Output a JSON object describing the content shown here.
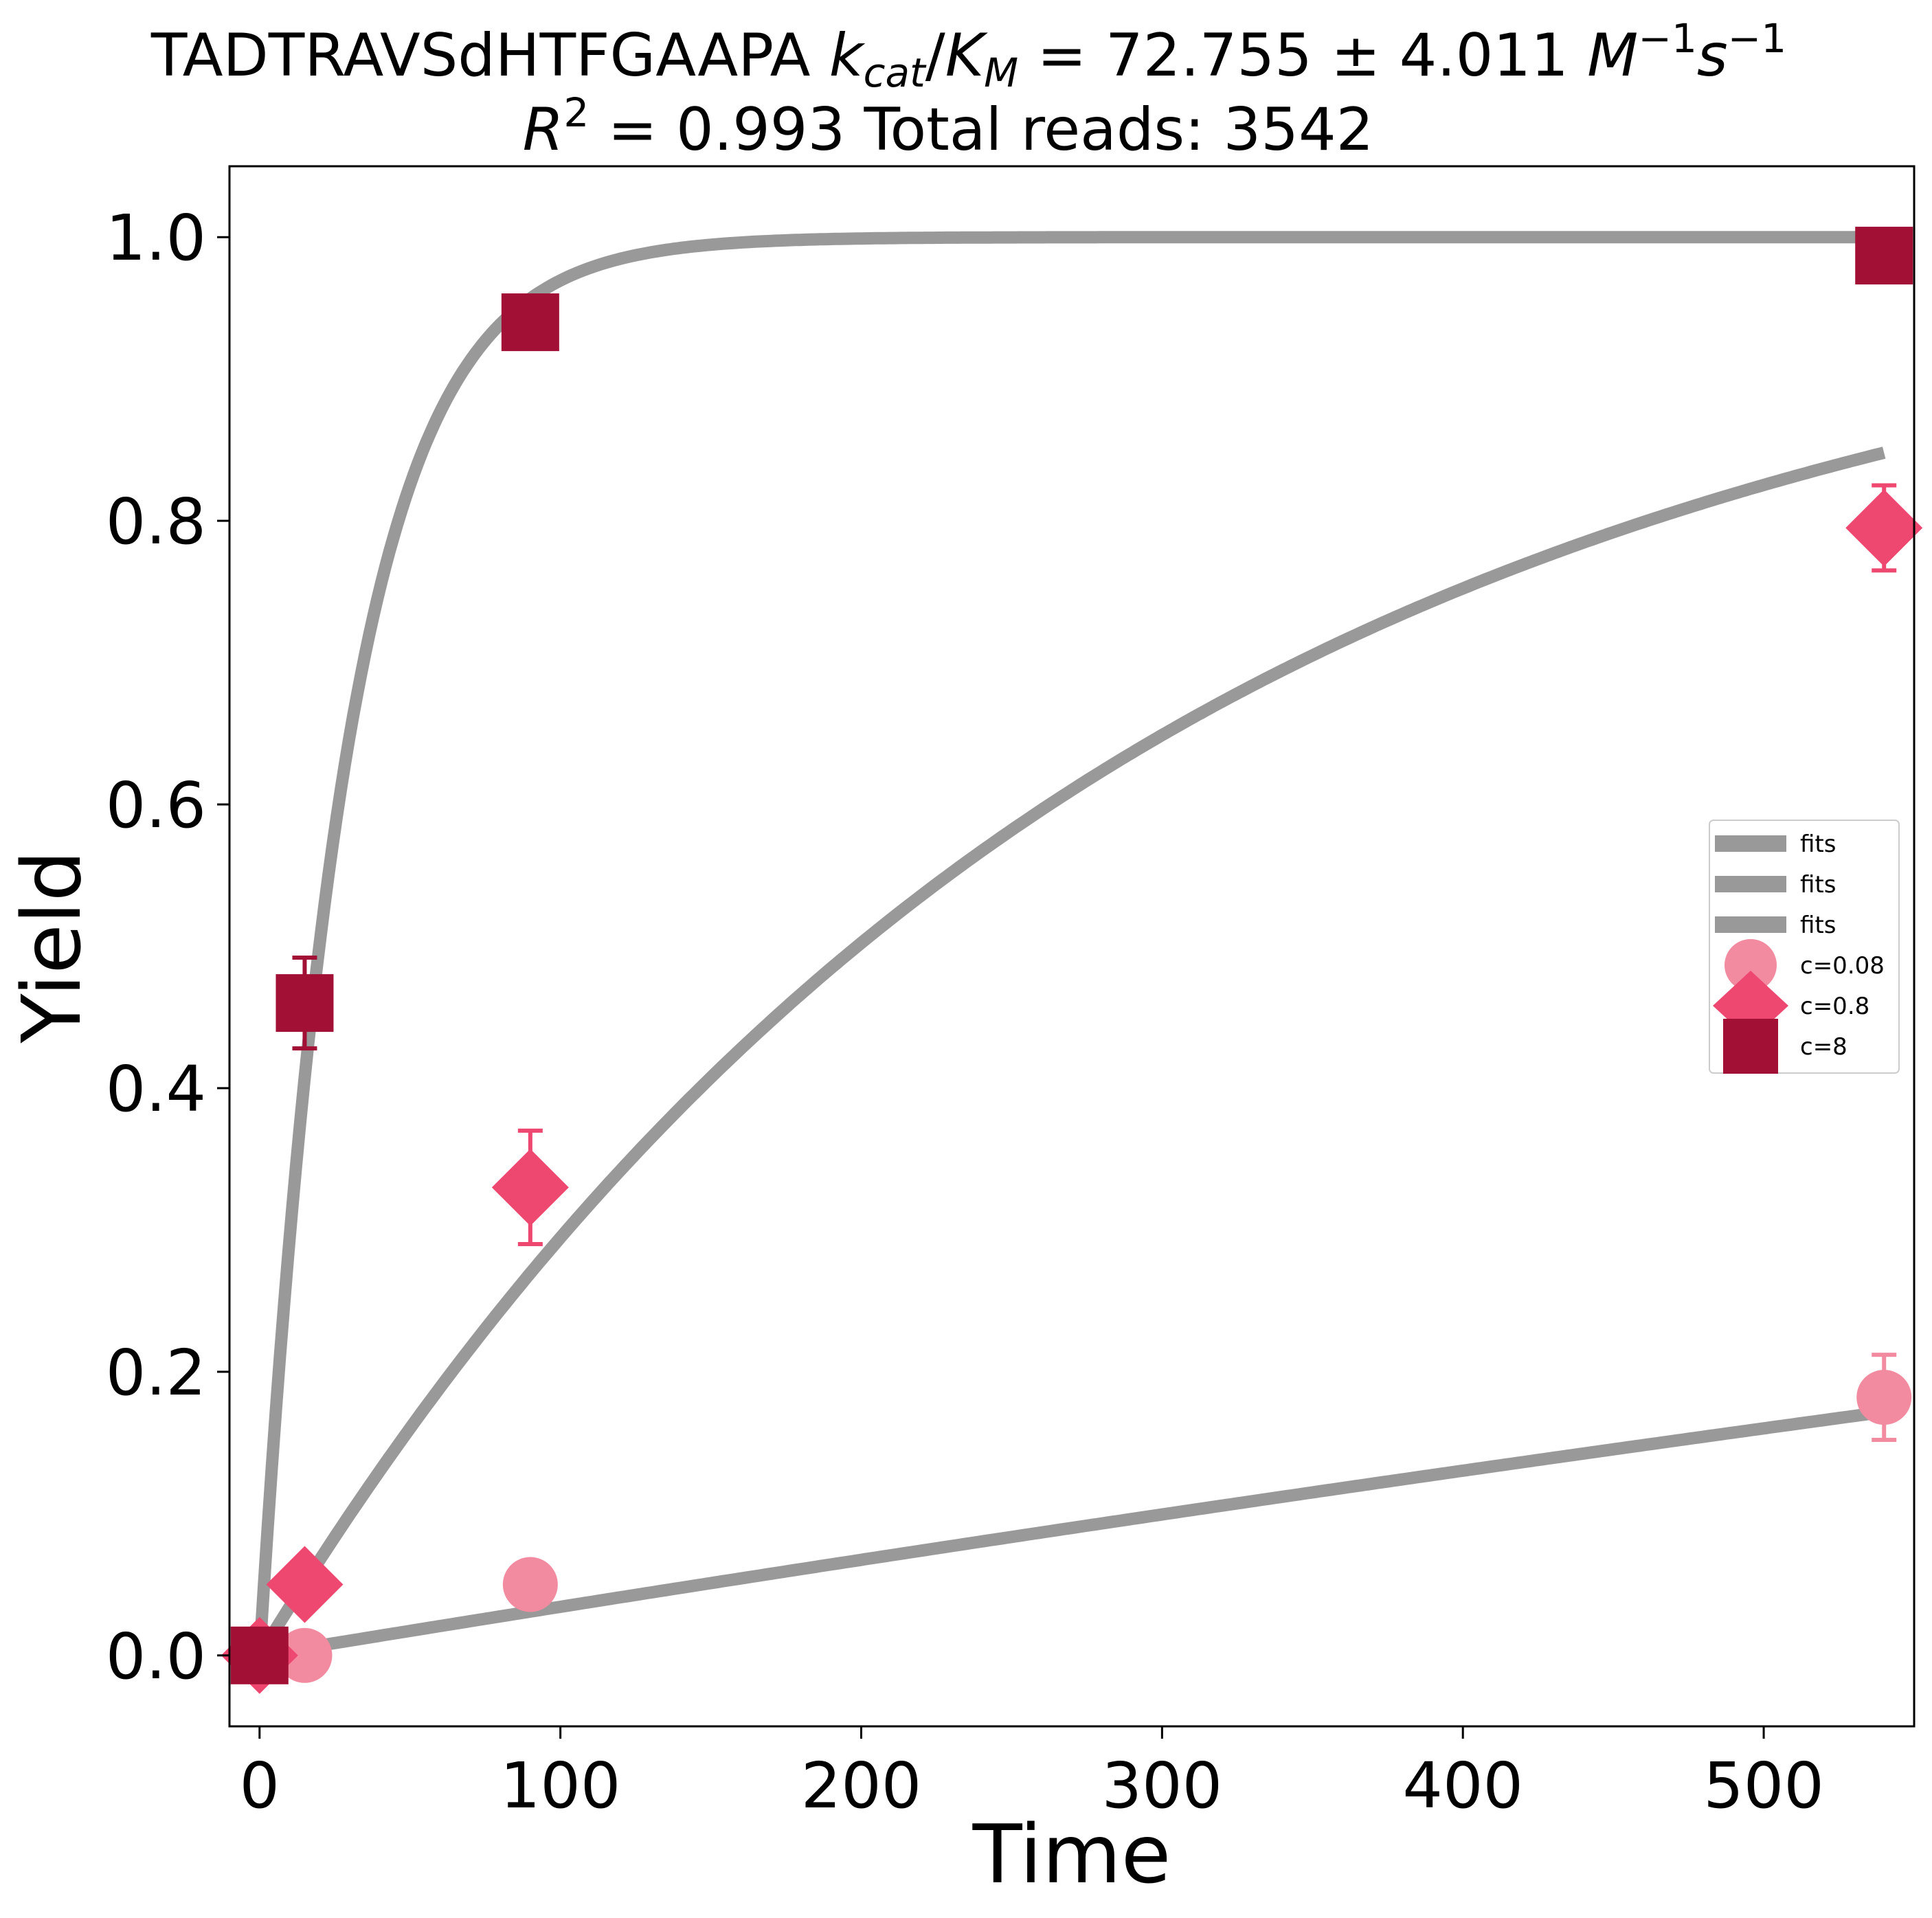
{
  "title": {
    "peptide": "TADTRAVSdHTFGAAPA",
    "k": "k",
    "cat": "cat",
    "slash": "/",
    "K": "K",
    "M_sub": "M",
    "equals_value": " = 72.755 ± 4.011 ",
    "unit_M": "M",
    "exp_minus1": "−1",
    "unit_s": "s",
    "exp_minus1_b": "−1",
    "r_R": "R",
    "r_sq": "2",
    "r_rest": " = 0.993 Total reads: 3542"
  },
  "chart_data": {
    "type": "scatter",
    "xlabel": "Time",
    "ylabel": "Yield",
    "xlim": [
      -10,
      550
    ],
    "ylim": [
      -0.05,
      1.05
    ],
    "xticks": [
      0,
      100,
      200,
      300,
      400,
      500
    ],
    "xtick_labels": [
      "0",
      "100",
      "200",
      "300",
      "400",
      "500"
    ],
    "yticks": [
      0.0,
      0.2,
      0.4,
      0.6,
      0.8,
      1.0
    ],
    "ytick_labels": [
      "0.0",
      "0.2",
      "0.4",
      "0.6",
      "0.8",
      "1.0"
    ],
    "grid": false,
    "legend_position": "center-right",
    "kcat_km": 72.755,
    "kcat_km_err": 4.011,
    "fit_color": "#999999",
    "fits": [
      {
        "label": "fits",
        "concentration": 0.08,
        "k_eff": 0.0003489
      },
      {
        "label": "fits",
        "concentration": 0.8,
        "k_eff": 0.003489
      },
      {
        "label": "fits",
        "concentration": 8,
        "k_eff": 0.03489
      }
    ],
    "fit_x_range": [
      0,
      540
    ],
    "series": [
      {
        "name": "c=0.08",
        "marker": "circle",
        "color": "#f28ba0",
        "x": [
          0,
          15,
          90,
          540
        ],
        "y": [
          0.0,
          0.0,
          0.05,
          0.182
        ],
        "err": [
          0,
          0,
          0,
          0.03
        ]
      },
      {
        "name": "c=0.8",
        "marker": "diamond",
        "color": "#ee4870",
        "x": [
          0,
          15,
          90,
          540
        ],
        "y": [
          0.0,
          0.05,
          0.33,
          0.795
        ],
        "err": [
          0,
          0,
          0.04,
          0.03
        ]
      },
      {
        "name": "c=8",
        "marker": "square",
        "color": "#a31035",
        "x": [
          0,
          15,
          90,
          540
        ],
        "y": [
          0.0,
          0.46,
          0.94,
          0.987
        ],
        "err": [
          0,
          0.032,
          0,
          0
        ]
      }
    ]
  }
}
